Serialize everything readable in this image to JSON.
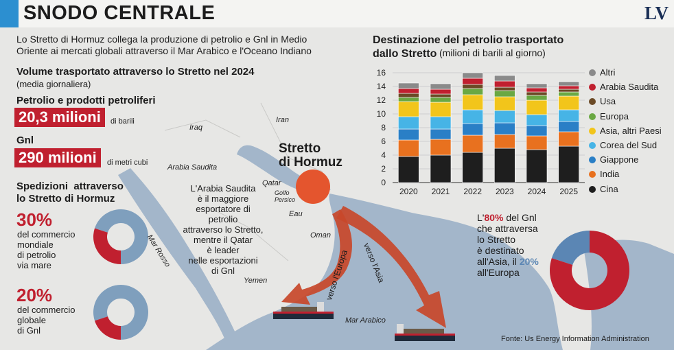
{
  "header": {
    "title": "SNODO CENTRALE",
    "logo": "LV"
  },
  "intro": "Lo Stretto di Hormuz collega la produzione di petrolio e Gnl in Medio Oriente ai mercati globali attraverso il Mar Arabico e l'Oceano Indiano",
  "volume": {
    "title": "Volume trasportato attraverso lo Stretto nel 2024",
    "subtitle": "(media giornaliera)",
    "oil_label": "Petrolio e prodotti petroliferi",
    "oil_value": "20,3 milioni",
    "oil_unit": "di barili",
    "gnl_label": "Gnl",
    "gnl_value": "290 milioni",
    "gnl_unit": "di metri cubi"
  },
  "shipments": {
    "title_line1": "Spedizioni  attraverso",
    "title_line2": "lo Stretto di Hormuz",
    "oil_pct": "30%",
    "oil_desc": [
      "del commercio",
      "mondiale",
      "di petrolio",
      "via mare"
    ],
    "oil_share": 0.3,
    "gnl_pct": "20%",
    "gnl_desc": [
      "del commercio",
      "globale",
      "di Gnl"
    ],
    "gnl_share": 0.2
  },
  "map_labels": {
    "iraq": "Iraq",
    "iran": "Iran",
    "arabia": "Arabia Saudita",
    "qatar": "Qatar",
    "golfo": [
      "Golfo",
      "Persico"
    ],
    "eau": "Eau",
    "oman": "Oman",
    "yemen": "Yemen",
    "mar_rosso": "Mar Rosso",
    "mar_arabico": "Mar Arabico",
    "strait": [
      "Stretto",
      "di Hormuz"
    ],
    "verso_europa": "verso l'Europa",
    "verso_asia": "verso l'Asia"
  },
  "arabia_note": [
    "L'Arabia Saudita",
    "è il maggiore",
    "esportatore di petrolio",
    "attraverso lo Stretto,",
    "mentre il Qatar",
    "è leader",
    "nelle esportazioni",
    "di Gnl"
  ],
  "gnl_note": {
    "l1_pre": "L'",
    "l1_pct": "80%",
    "l1_post": " del Gnl",
    "l2": "che attraversa",
    "l3": "lo Stretto",
    "l4": "è destinato",
    "l5_pre": "all'Asia, il ",
    "l5_pct": "20%",
    "l6": "all'Europa",
    "asia_share": 0.8,
    "asia_color": "#c0202f",
    "europe_color": "#5b86b4"
  },
  "chart_data": {
    "type": "bar",
    "stacked": true,
    "title": "Destinazione del petrolio trasportato dallo Stretto",
    "subtitle": "(milioni di barili al giorno)",
    "categories": [
      "2020",
      "2021",
      "2022",
      "2023",
      "2024",
      "2025"
    ],
    "ylim": [
      0,
      16
    ],
    "yticks": [
      "0",
      "2",
      "4",
      "6",
      "8",
      "10",
      "12",
      "14",
      "16"
    ],
    "grid": true,
    "legend_position": "right",
    "series": [
      {
        "name": "Cina",
        "color": "#1e1e1e",
        "values": [
          3.8,
          4.0,
          4.4,
          5.0,
          4.8,
          5.3
        ]
      },
      {
        "name": "India",
        "color": "#e8711f",
        "values": [
          2.4,
          2.3,
          2.5,
          2.0,
          2.0,
          2.1
        ]
      },
      {
        "name": "Giappone",
        "color": "#2a7fc6",
        "values": [
          1.6,
          1.5,
          1.7,
          1.7,
          1.5,
          1.5
        ]
      },
      {
        "name": "Corea del Sud",
        "color": "#46b4e6",
        "values": [
          1.8,
          1.8,
          2.0,
          1.8,
          1.6,
          1.7
        ]
      },
      {
        "name": "Asia, altri Paesi",
        "color": "#f2c51b",
        "values": [
          2.2,
          2.1,
          2.2,
          2.0,
          2.1,
          2.0
        ]
      },
      {
        "name": "Europa",
        "color": "#6aa843",
        "values": [
          0.6,
          0.7,
          0.9,
          0.9,
          0.7,
          0.6
        ]
      },
      {
        "name": "Usa",
        "color": "#6b4a26",
        "values": [
          0.6,
          0.5,
          0.6,
          0.5,
          0.5,
          0.4
        ]
      },
      {
        "name": "Arabia Saudita",
        "color": "#c0202f",
        "values": [
          0.7,
          0.7,
          0.9,
          0.9,
          0.6,
          0.5
        ]
      },
      {
        "name": "Altri",
        "color": "#8a8a8a",
        "values": [
          0.8,
          0.8,
          0.8,
          0.8,
          0.6,
          0.6
        ]
      }
    ]
  },
  "source": "Fonte: Us Energy Information Administration",
  "colors": {
    "accent_red": "#c0202f",
    "accent_blue": "#2c8fd0",
    "donut_rest": "#7f9fbd",
    "strait_marker": "#e4552e"
  }
}
